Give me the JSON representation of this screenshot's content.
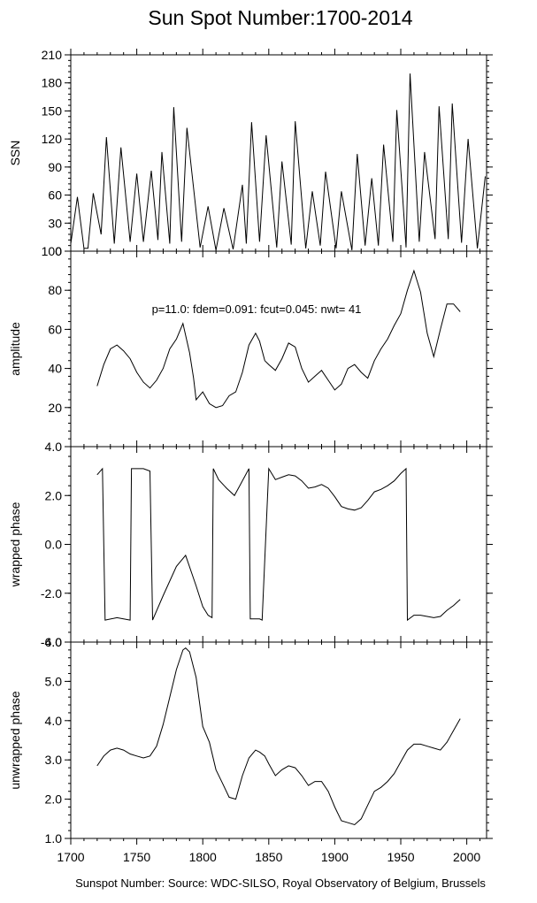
{
  "chart_data": {
    "title": "Sun Spot Number:1700-2014",
    "footer": "Sunspot Number: Source: WDC-SILSO, Royal Observatory of Belgium, Brussels",
    "x_axis": {
      "range": [
        1700,
        2015
      ],
      "ticks": [
        1700,
        1750,
        1800,
        1850,
        1900,
        1950,
        2000
      ],
      "tick_labels": [
        "1700",
        "1750",
        "1800",
        "1850",
        "1900",
        "1950",
        "2000"
      ]
    },
    "panels": [
      {
        "id": "ssn",
        "type": "line",
        "ylabel": "SSN",
        "ylim": [
          0,
          210
        ],
        "yticks": [
          0,
          30,
          60,
          90,
          120,
          150,
          180,
          210
        ],
        "ytick_labels": [
          "0",
          "30",
          "60",
          "90",
          "120",
          "150",
          "180",
          "210"
        ],
        "series": [
          {
            "x": [
              1700,
              1705,
              1710,
              1713,
              1717,
              1723,
              1727,
              1733,
              1738,
              1745,
              1750,
              1755,
              1761,
              1766,
              1769,
              1775,
              1778,
              1784,
              1788,
              1798,
              1804,
              1810,
              1816,
              1823,
              1830,
              1833,
              1837,
              1843,
              1848,
              1856,
              1860,
              1867,
              1870,
              1878,
              1883,
              1889,
              1893,
              1901,
              1905,
              1913,
              1917,
              1923,
              1928,
              1933,
              1937,
              1944,
              1947,
              1954,
              1957,
              1964,
              1968,
              1976,
              1979,
              1986,
              1989,
              1996,
              2001,
              2008,
              2014
            ],
            "y": [
              8,
              58,
              3,
              3,
              62,
              18,
              122,
              8,
              111,
              10,
              83,
              10,
              86,
              12,
              106,
              8,
              154,
              10,
              132,
              4,
              48,
              1,
              46,
              2,
              71,
              8,
              138,
              10,
              124,
              4,
              96,
              7,
              139,
              3,
              64,
              6,
              85,
              3,
              64,
              1,
              104,
              6,
              78,
              6,
              114,
              10,
              151,
              4,
              190,
              10,
              106,
              13,
              155,
              13,
              158,
              9,
              120,
              3,
              80
            ]
          }
        ]
      },
      {
        "id": "amplitude",
        "type": "line",
        "ylabel": "amplitude",
        "ylim": [
          0,
          100
        ],
        "yticks": [
          20,
          40,
          60,
          80,
          100
        ],
        "ytick_labels": [
          "20",
          "40",
          "60",
          "80",
          "100"
        ],
        "annotation": "p=11.0: fdem=0.091: fcut=0.045: nwt= 41",
        "series": [
          {
            "x": [
              1720,
              1725,
              1730,
              1735,
              1740,
              1745,
              1750,
              1755,
              1760,
              1765,
              1770,
              1775,
              1780,
              1785,
              1790,
              1793,
              1795,
              1800,
              1805,
              1810,
              1815,
              1820,
              1825,
              1830,
              1835,
              1840,
              1843,
              1847,
              1850,
              1855,
              1860,
              1865,
              1870,
              1875,
              1880,
              1885,
              1890,
              1895,
              1900,
              1905,
              1910,
              1915,
              1920,
              1925,
              1930,
              1935,
              1940,
              1945,
              1950,
              1955,
              1960,
              1965,
              1970,
              1975,
              1980,
              1985,
              1990,
              1995
            ],
            "y": [
              31,
              42,
              50,
              52,
              49,
              45,
              38,
              33,
              30,
              34,
              40,
              50,
              55,
              63,
              48,
              35,
              24,
              28,
              22,
              20,
              21,
              26,
              28,
              38,
              52,
              58,
              54,
              44,
              42,
              39,
              45,
              53,
              51,
              40,
              33,
              36,
              39,
              34,
              29,
              32,
              40,
              42,
              38,
              35,
              44,
              50,
              55,
              62,
              68,
              80,
              90,
              79,
              58,
              46,
              60,
              73,
              73,
              69
            ]
          }
        ]
      },
      {
        "id": "wrapped_phase",
        "type": "line",
        "ylabel": "wrapped phase",
        "ylim": [
          -4,
          4
        ],
        "yticks": [
          -4,
          -2,
          0,
          2,
          4
        ],
        "ytick_labels": [
          "-4.0",
          "-2.0",
          "0.0",
          "2.0",
          "4.0"
        ],
        "series": [
          {
            "x": [
              1720,
              1724,
              1726,
              1735,
              1745,
              1746,
              1755,
              1760,
              1762,
              1770,
              1780,
              1787,
              1795,
              1800,
              1804,
              1807,
              1808,
              1812,
              1818,
              1824,
              1828,
              1835,
              1836,
              1843,
              1845,
              1850,
              1855,
              1860,
              1865,
              1870,
              1875,
              1880,
              1885,
              1890,
              1895,
              1900,
              1905,
              1910,
              1915,
              1920,
              1925,
              1930,
              1935,
              1940,
              1945,
              1950,
              1954,
              1955,
              1960,
              1965,
              1970,
              1975,
              1980,
              1985,
              1990,
              1995
            ],
            "y": [
              2.85,
              3.1,
              -3.1,
              -3.0,
              -3.1,
              3.1,
              3.1,
              3.0,
              -3.1,
              -2.1,
              -0.9,
              -0.45,
              -1.7,
              -2.55,
              -2.9,
              -3.0,
              3.1,
              2.65,
              2.3,
              2.0,
              2.4,
              3.1,
              -3.05,
              -3.05,
              -3.1,
              3.1,
              2.65,
              2.75,
              2.85,
              2.8,
              2.6,
              2.3,
              2.35,
              2.45,
              2.3,
              1.95,
              1.55,
              1.45,
              1.4,
              1.5,
              1.8,
              2.15,
              2.25,
              2.4,
              2.6,
              2.9,
              3.1,
              -3.1,
              -2.9,
              -2.9,
              -2.95,
              -3.0,
              -2.95,
              -2.7,
              -2.5,
              -2.25
            ]
          }
        ]
      },
      {
        "id": "unwrapped_phase",
        "type": "line",
        "ylabel": "unwrapped phase",
        "ylim": [
          1.0,
          6.0
        ],
        "yticks": [
          1.0,
          2.0,
          3.0,
          4.0,
          5.0,
          6.0
        ],
        "ytick_labels": [
          "1.0",
          "2.0",
          "3.0",
          "4.0",
          "5.0",
          "6.0"
        ],
        "series": [
          {
            "x": [
              1720,
              1725,
              1730,
              1735,
              1740,
              1745,
              1750,
              1755,
              1760,
              1765,
              1770,
              1775,
              1780,
              1785,
              1787,
              1790,
              1795,
              1800,
              1805,
              1810,
              1815,
              1820,
              1825,
              1830,
              1835,
              1840,
              1843,
              1847,
              1850,
              1855,
              1860,
              1865,
              1870,
              1875,
              1880,
              1885,
              1890,
              1895,
              1900,
              1905,
              1910,
              1915,
              1920,
              1925,
              1930,
              1935,
              1940,
              1945,
              1950,
              1955,
              1960,
              1965,
              1970,
              1975,
              1980,
              1985,
              1990,
              1995
            ],
            "y": [
              2.85,
              3.1,
              3.25,
              3.3,
              3.25,
              3.15,
              3.1,
              3.05,
              3.1,
              3.35,
              3.9,
              4.6,
              5.3,
              5.8,
              5.85,
              5.75,
              5.1,
              3.85,
              3.45,
              2.75,
              2.4,
              2.05,
              2.0,
              2.6,
              3.05,
              3.25,
              3.2,
              3.1,
              2.9,
              2.6,
              2.75,
              2.85,
              2.8,
              2.6,
              2.35,
              2.45,
              2.45,
              2.2,
              1.8,
              1.45,
              1.4,
              1.35,
              1.5,
              1.85,
              2.2,
              2.3,
              2.45,
              2.65,
              2.95,
              3.25,
              3.4,
              3.4,
              3.35,
              3.3,
              3.25,
              3.45,
              3.75,
              4.05
            ]
          }
        ]
      }
    ]
  }
}
